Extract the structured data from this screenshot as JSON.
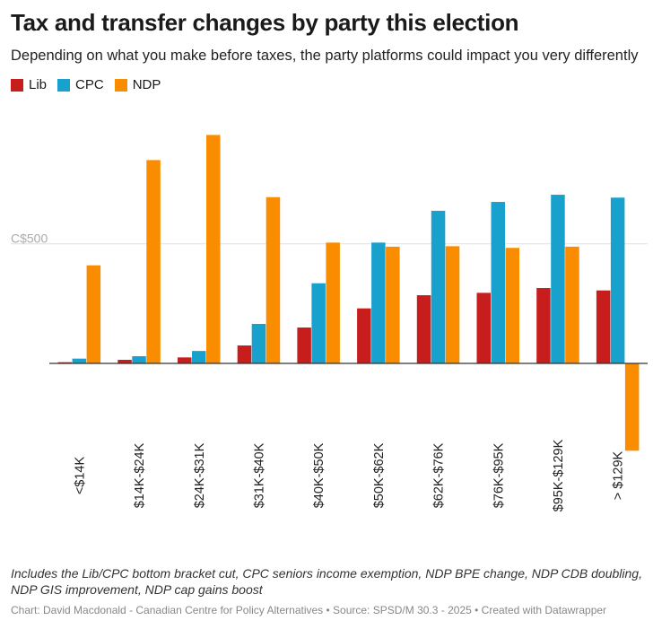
{
  "title": "Tax and transfer changes by party this election",
  "subtitle": "Depending on what you make before taxes, the party platforms could impact you very differently",
  "notes": "Includes the Lib/CPC bottom bracket cut, CPC seniors income exemption, NDP BPE change, NDP CDB doubling, NDP GIS improvement, NDP cap gains boost",
  "credit": "Chart: David Macdonald - Canadian Centre for Policy Alternatives • Source: SPSD/M 30.3 - 2025 • Created with Datawrapper",
  "colors": {
    "lib": "#c71e1d",
    "cpc": "#18a1cd",
    "ndp": "#fa8c00",
    "grid": "#e0e0e0",
    "tick": "#aaaaaa"
  },
  "chart_data": {
    "type": "bar",
    "categories": [
      "<$14K",
      "$14K-$24K",
      "$24K-$31K",
      "$31K-$40K",
      "$40K-$50K",
      "$50K-$62K",
      "$62K-$76K",
      "$76K-$95K",
      "$95K-$129K",
      "> $129K"
    ],
    "series": [
      {
        "name": "Lib",
        "color": "#c71e1d",
        "values": [
          5,
          15,
          25,
          75,
          150,
          230,
          285,
          295,
          315,
          305
        ]
      },
      {
        "name": "CPC",
        "color": "#18a1cd",
        "values": [
          20,
          30,
          52,
          165,
          335,
          505,
          638,
          675,
          705,
          693
        ]
      },
      {
        "name": "NDP",
        "color": "#fa8c00",
        "values": [
          410,
          850,
          955,
          695,
          505,
          488,
          490,
          483,
          488,
          -365
        ]
      }
    ],
    "yticks": [
      500
    ],
    "ytick_labels": [
      "C$500"
    ],
    "ylim": [
      -410,
      1000
    ],
    "xlabel": "",
    "ylabel": ""
  }
}
